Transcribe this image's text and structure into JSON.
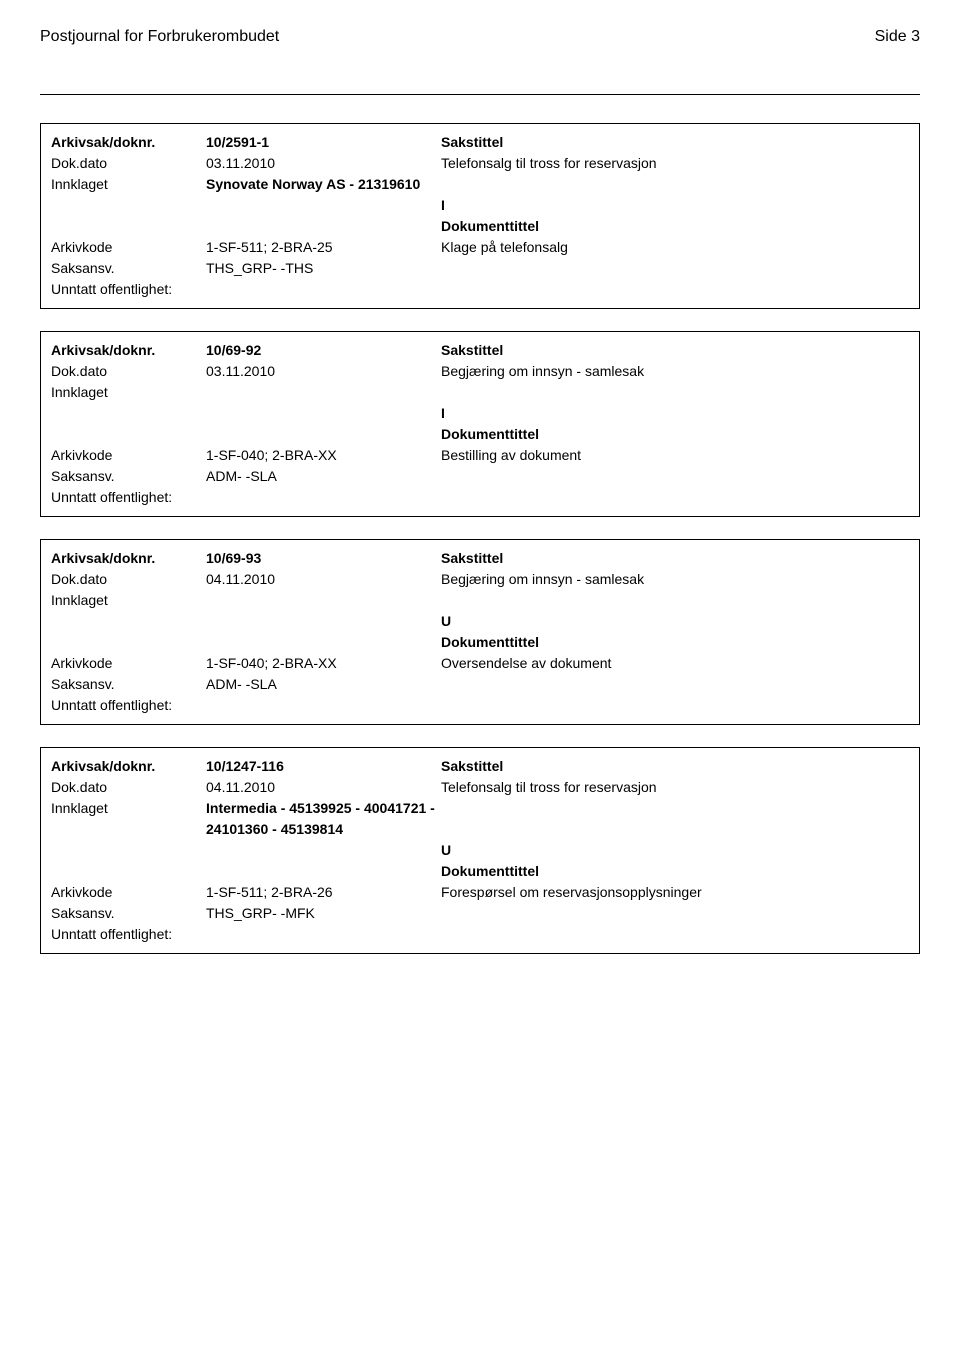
{
  "header": {
    "journal_title": "Postjournal for Forbrukerombudet",
    "page_label": "Side 3"
  },
  "labels": {
    "arkivsak_doknr": "Arkivsak/doknr.",
    "dok_dato": "Dok.dato",
    "innklaget": "Innklaget",
    "arkivkode": "Arkivkode",
    "saksansv": "Saksansv.",
    "unntatt": "Unntatt offentlighet:",
    "sakstittel": "Sakstittel",
    "dokumenttittel": "Dokumenttittel"
  },
  "records": [
    {
      "arkivsak_doknr": "10/2591-1",
      "dok_dato": "03.11.2010",
      "sakstittel_text": "Telefonsalg til tross for reservasjon",
      "innklaget": "Synovate Norway AS - 21319610",
      "direction": "I",
      "arkivkode": "1-SF-511; 2-BRA-25",
      "dokumenttittel_text": "Klage på telefonsalg",
      "saksansv": "THS_GRP- -THS"
    },
    {
      "arkivsak_doknr": "10/69-92",
      "dok_dato": "03.11.2010",
      "sakstittel_text": "Begjæring om innsyn - samlesak",
      "innklaget": "",
      "direction": "I",
      "arkivkode": "1-SF-040; 2-BRA-XX",
      "dokumenttittel_text": "Bestilling av dokument",
      "saksansv": "ADM- -SLA"
    },
    {
      "arkivsak_doknr": "10/69-93",
      "dok_dato": "04.11.2010",
      "sakstittel_text": "Begjæring om innsyn - samlesak",
      "innklaget": "",
      "direction": "U",
      "arkivkode": "1-SF-040; 2-BRA-XX",
      "dokumenttittel_text": "Oversendelse av dokument",
      "saksansv": "ADM- -SLA"
    },
    {
      "arkivsak_doknr": "10/1247-116",
      "dok_dato": "04.11.2010",
      "sakstittel_text": "Telefonsalg til tross for reservasjon",
      "innklaget": "Intermedia - 45139925 - 40041721 - 24101360 - 45139814",
      "direction": "U",
      "arkivkode": "1-SF-511; 2-BRA-26",
      "dokumenttittel_text": "Forespørsel om reservasjonsopplysninger",
      "saksansv": "THS_GRP- -MFK"
    }
  ]
}
